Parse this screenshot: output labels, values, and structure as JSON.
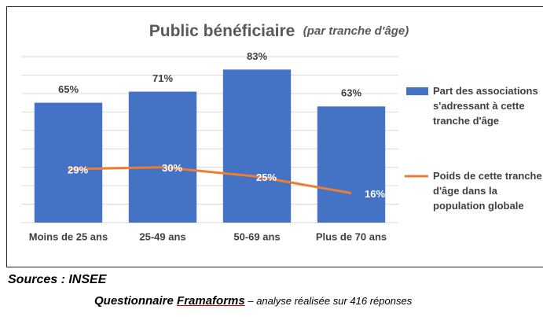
{
  "chart_data": {
    "type": "bar",
    "title": "Public bénéficiaire",
    "subtitle": "(par tranche d'âge)",
    "categories": [
      "Moins de 25 ans",
      "25-49 ans",
      "50-69 ans",
      "Plus de 70 ans"
    ],
    "series": [
      {
        "name": "Part des associations s'adressant à cette tranche d'âge",
        "type": "bar",
        "color": "#4472c4",
        "values": [
          65,
          71,
          83,
          63
        ],
        "value_labels": [
          "65%",
          "71%",
          "83%",
          "63%"
        ]
      },
      {
        "name": "Poids de cette tranche d'âge dans la population globale",
        "type": "line",
        "color": "#ed7d31",
        "values": [
          29,
          30,
          25,
          16
        ],
        "value_labels": [
          "29%",
          "30%",
          "25%",
          "16%"
        ]
      }
    ],
    "ylim": [
      0,
      90
    ],
    "yticks": [
      0,
      10,
      20,
      30,
      40,
      50,
      60,
      70,
      80,
      90
    ],
    "grid": true,
    "legend": "right"
  },
  "sources": {
    "line1": "Sources : INSEE",
    "line2_start": "Questionnaire ",
    "line2_link": "Framaforms",
    "line2_rest": " – analyse réalisée sur 416 réponses"
  }
}
